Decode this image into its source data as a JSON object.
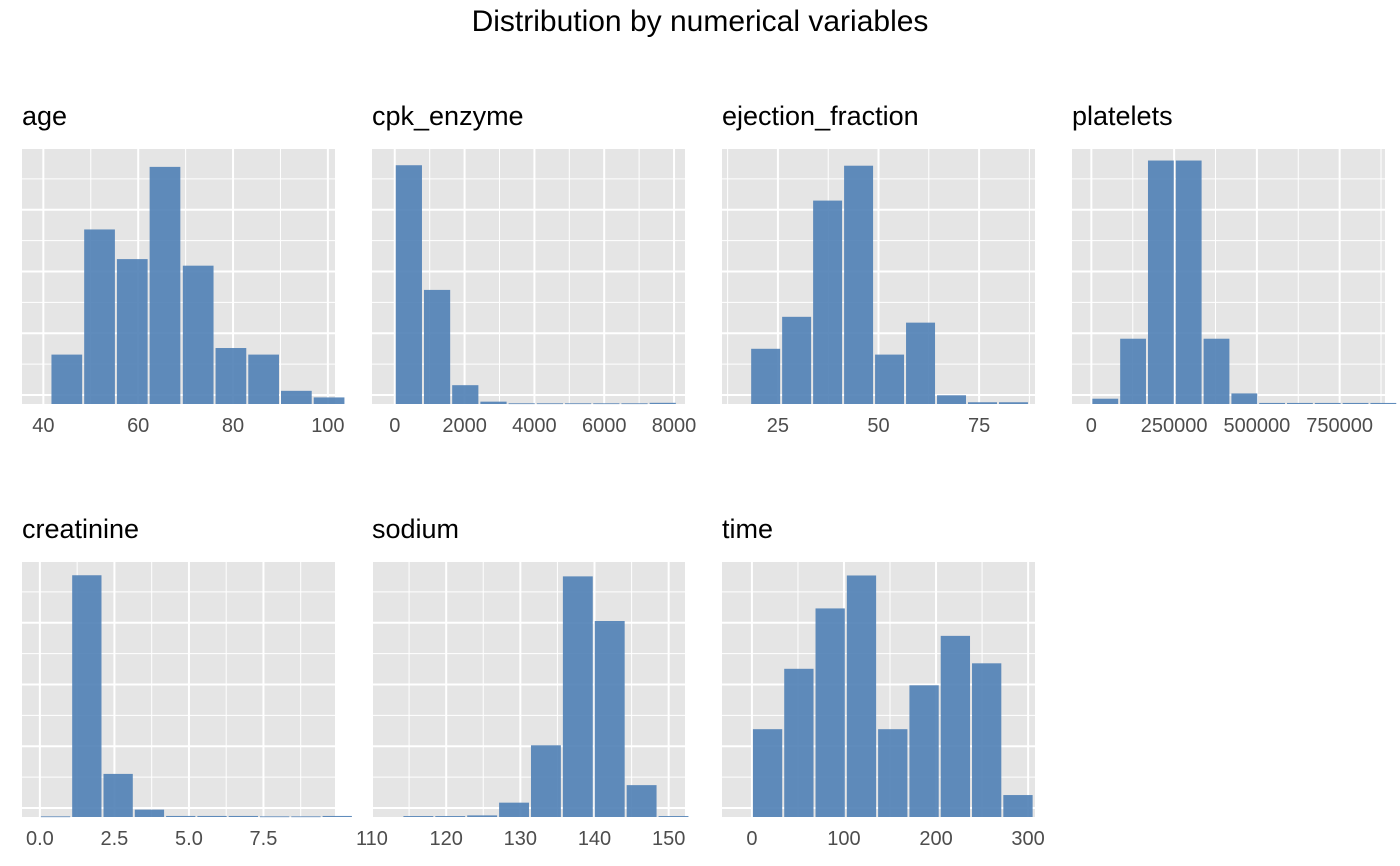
{
  "title": "Distribution by numerical variables",
  "colors": {
    "bar": "#4f7fb5",
    "panel_bg": "#e5e5e5",
    "grid": "#ffffff",
    "axis_text": "#4d4d4d"
  },
  "chart_data": [
    {
      "type": "bar",
      "title": "age",
      "x_ticks": [
        "40",
        "60",
        "80",
        "100"
      ],
      "x_tick_values": [
        40,
        60,
        80,
        100
      ],
      "xlim": [
        35.5,
        101.5
      ],
      "ylim": [
        0,
        75
      ],
      "grid": true,
      "bins": [
        {
          "x": 41.5,
          "w": 6.9,
          "y": 15
        },
        {
          "x": 48.4,
          "w": 6.9,
          "y": 53
        },
        {
          "x": 55.3,
          "w": 6.9,
          "y": 44
        },
        {
          "x": 62.2,
          "w": 6.9,
          "y": 72
        },
        {
          "x": 69.2,
          "w": 6.9,
          "y": 42
        },
        {
          "x": 76.1,
          "w": 6.9,
          "y": 17
        },
        {
          "x": 83.0,
          "w": 6.9,
          "y": 15
        },
        {
          "x": 89.9,
          "w": 6.9,
          "y": 4
        },
        {
          "x": 96.8,
          "w": 6.9,
          "y": 2
        }
      ]
    },
    {
      "type": "bar",
      "title": "cpk_enzyme",
      "x_ticks": [
        "0",
        "2000",
        "4000",
        "6000",
        "8000"
      ],
      "x_tick_values": [
        0,
        2000,
        4000,
        6000,
        8000
      ],
      "xlim": [
        -652,
        8314
      ],
      "ylim": [
        0,
        210
      ],
      "grid": true,
      "bins": [
        {
          "x": 0,
          "w": 808,
          "y": 203
        },
        {
          "x": 808,
          "w": 808,
          "y": 97
        },
        {
          "x": 1616,
          "w": 808,
          "y": 16
        },
        {
          "x": 2424,
          "w": 808,
          "y": 2
        },
        {
          "x": 3232,
          "w": 808,
          "y": 0
        },
        {
          "x": 4040,
          "w": 808,
          "y": 0
        },
        {
          "x": 4848,
          "w": 808,
          "y": 0
        },
        {
          "x": 5656,
          "w": 808,
          "y": 0
        },
        {
          "x": 6464,
          "w": 808,
          "y": 0
        },
        {
          "x": 7272,
          "w": 808,
          "y": 1
        }
      ]
    },
    {
      "type": "bar",
      "title": "ejection_fraction",
      "x_ticks": [
        "25",
        "50",
        "75"
      ],
      "x_tick_values": [
        25,
        50,
        75
      ],
      "xlim": [
        11.1,
        88.9
      ],
      "ylim": [
        0,
        85
      ],
      "grid": true,
      "bins": [
        {
          "x": 18.1,
          "w": 7.7,
          "y": 19
        },
        {
          "x": 25.8,
          "w": 7.7,
          "y": 30
        },
        {
          "x": 33.5,
          "w": 7.7,
          "y": 70
        },
        {
          "x": 41.2,
          "w": 7.7,
          "y": 82
        },
        {
          "x": 48.9,
          "w": 7.7,
          "y": 17
        },
        {
          "x": 56.6,
          "w": 7.7,
          "y": 28
        },
        {
          "x": 64.3,
          "w": 7.7,
          "y": 3
        },
        {
          "x": 72.0,
          "w": 7.7,
          "y": 0
        },
        {
          "x": 79.7,
          "w": 7.7,
          "y": 0
        }
      ]
    },
    {
      "type": "bar",
      "title": "platelets",
      "x_ticks": [
        "0",
        "250000",
        "500000",
        "750000"
      ],
      "x_tick_values": [
        0,
        250000,
        500000,
        750000
      ],
      "xlim": [
        -58500,
        887000
      ],
      "ylim": [
        0,
        140
      ],
      "grid": true,
      "bins": [
        {
          "x": 0,
          "w": 84000,
          "y": 3
        },
        {
          "x": 84000,
          "w": 84000,
          "y": 37
        },
        {
          "x": 168000,
          "w": 84000,
          "y": 138
        },
        {
          "x": 252000,
          "w": 84000,
          "y": 138
        },
        {
          "x": 336000,
          "w": 84000,
          "y": 37
        },
        {
          "x": 420000,
          "w": 84000,
          "y": 6
        },
        {
          "x": 504000,
          "w": 84000,
          "y": 0
        },
        {
          "x": 588000,
          "w": 84000,
          "y": 0
        },
        {
          "x": 672000,
          "w": 84000,
          "y": 0
        },
        {
          "x": 756000,
          "w": 84000,
          "y": 0
        },
        {
          "x": 840000,
          "w": 84000,
          "y": 0
        }
      ]
    },
    {
      "type": "bar",
      "title": "creatinine",
      "x_ticks": [
        "0.0",
        "2.5",
        "5.0",
        "7.5"
      ],
      "x_tick_values": [
        0,
        2.5,
        5,
        7.5
      ],
      "xlim": [
        -0.6,
        9.9
      ],
      "ylim": [
        0,
        235
      ],
      "grid": true,
      "bins": [
        {
          "x": 0,
          "w": 1.05,
          "y": 0
        },
        {
          "x": 1.05,
          "w": 1.05,
          "y": 230
        },
        {
          "x": 2.1,
          "w": 1.05,
          "y": 41
        },
        {
          "x": 3.15,
          "w": 1.05,
          "y": 7
        },
        {
          "x": 4.2,
          "w": 1.05,
          "y": 1
        },
        {
          "x": 5.25,
          "w": 1.05,
          "y": 1
        },
        {
          "x": 6.3,
          "w": 1.05,
          "y": 1
        },
        {
          "x": 7.35,
          "w": 1.05,
          "y": 0
        },
        {
          "x": 8.4,
          "w": 1.05,
          "y": 0
        },
        {
          "x": 9.45,
          "w": 1.05,
          "y": 1
        }
      ]
    },
    {
      "type": "bar",
      "title": "sodium",
      "x_ticks": [
        "110",
        "120",
        "130",
        "140",
        "150"
      ],
      "x_tick_values": [
        110,
        120,
        130,
        140,
        150
      ],
      "xlim": [
        110.0,
        152.2
      ],
      "ylim": [
        0,
        155
      ],
      "grid": true,
      "bins": [
        {
          "x": 114.1,
          "w": 4.3,
          "y": 0
        },
        {
          "x": 118.4,
          "w": 4.3,
          "y": 0
        },
        {
          "x": 122.7,
          "w": 4.3,
          "y": 1
        },
        {
          "x": 127.0,
          "w": 4.3,
          "y": 9
        },
        {
          "x": 131.3,
          "w": 4.3,
          "y": 45
        },
        {
          "x": 135.6,
          "w": 4.3,
          "y": 151
        },
        {
          "x": 139.9,
          "w": 4.3,
          "y": 123
        },
        {
          "x": 144.2,
          "w": 4.3,
          "y": 20
        },
        {
          "x": 148.5,
          "w": 4.3,
          "y": 0
        }
      ]
    },
    {
      "type": "bar",
      "title": "time",
      "x_ticks": [
        "0",
        "100",
        "200",
        "300"
      ],
      "x_tick_values": [
        0,
        100,
        200,
        300
      ],
      "xlim": [
        -32.5,
        307.5
      ],
      "ylim": [
        0,
        45
      ],
      "grid": true,
      "bins": [
        {
          "x": 0,
          "w": 34,
          "y": 16
        },
        {
          "x": 34,
          "w": 34,
          "y": 27
        },
        {
          "x": 68,
          "w": 34,
          "y": 38
        },
        {
          "x": 102,
          "w": 34,
          "y": 44
        },
        {
          "x": 136,
          "w": 34,
          "y": 16
        },
        {
          "x": 170,
          "w": 34,
          "y": 24
        },
        {
          "x": 204,
          "w": 34,
          "y": 33
        },
        {
          "x": 238,
          "w": 34,
          "y": 28
        },
        {
          "x": 272,
          "w": 34,
          "y": 4
        }
      ]
    }
  ]
}
